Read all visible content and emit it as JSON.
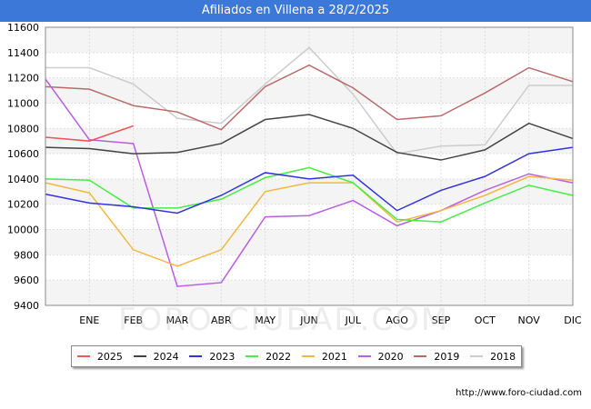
{
  "title": "Afiliados en Villena a 28/2/2025",
  "source": "http://www.foro-ciudad.com",
  "watermark": "FORO-CIUDAD.COM",
  "chart_data": {
    "type": "line",
    "title": "Afiliados en Villena a 28/2/2025",
    "xlabel": "",
    "ylabel": "",
    "categories": [
      "",
      "ENE",
      "FEB",
      "MAR",
      "ABR",
      "MAY",
      "JUN",
      "JUL",
      "AGO",
      "SEP",
      "OCT",
      "NOV",
      "DIC"
    ],
    "ylim": [
      9400,
      11600
    ],
    "yticks": [
      9400,
      9600,
      9800,
      10000,
      10200,
      10400,
      10600,
      10800,
      11000,
      11200,
      11400,
      11600
    ],
    "grid": true,
    "legend_position": "bottom",
    "series": [
      {
        "name": "2025",
        "color": "#ee5555",
        "values": [
          10730,
          10700,
          10820,
          null,
          null,
          null,
          null,
          null,
          null,
          null,
          null,
          null,
          null
        ]
      },
      {
        "name": "2024",
        "color": "#444444",
        "values": [
          10650,
          10640,
          10600,
          10610,
          10680,
          10870,
          10910,
          10800,
          10610,
          10550,
          10630,
          10840,
          10720
        ]
      },
      {
        "name": "2023",
        "color": "#3333dd",
        "values": [
          10280,
          10210,
          10180,
          10130,
          10270,
          10450,
          10400,
          10430,
          10150,
          10310,
          10420,
          10600,
          10650
        ]
      },
      {
        "name": "2022",
        "color": "#44ee44",
        "values": [
          10400,
          10390,
          10170,
          10170,
          10240,
          10410,
          10490,
          10370,
          10080,
          10060,
          10210,
          10350,
          10270
        ]
      },
      {
        "name": "2021",
        "color": "#f4b642",
        "values": [
          10370,
          10290,
          9840,
          9710,
          9840,
          10300,
          10370,
          10370,
          10060,
          10150,
          10270,
          10420,
          10390
        ]
      },
      {
        "name": "2020",
        "color": "#b85ee0",
        "values": [
          11190,
          10710,
          10680,
          9550,
          9580,
          10100,
          10110,
          10230,
          10030,
          10150,
          10310,
          10440,
          10370
        ]
      },
      {
        "name": "2019",
        "color": "#b86a6a",
        "values": [
          11130,
          11110,
          10980,
          10930,
          10790,
          11130,
          11300,
          11120,
          10870,
          10900,
          11080,
          11280,
          11170
        ]
      },
      {
        "name": "2018",
        "color": "#cccccc",
        "values": [
          11280,
          11280,
          11150,
          10880,
          10840,
          11150,
          11440,
          11070,
          10600,
          10660,
          10670,
          11140,
          11140
        ]
      }
    ]
  }
}
